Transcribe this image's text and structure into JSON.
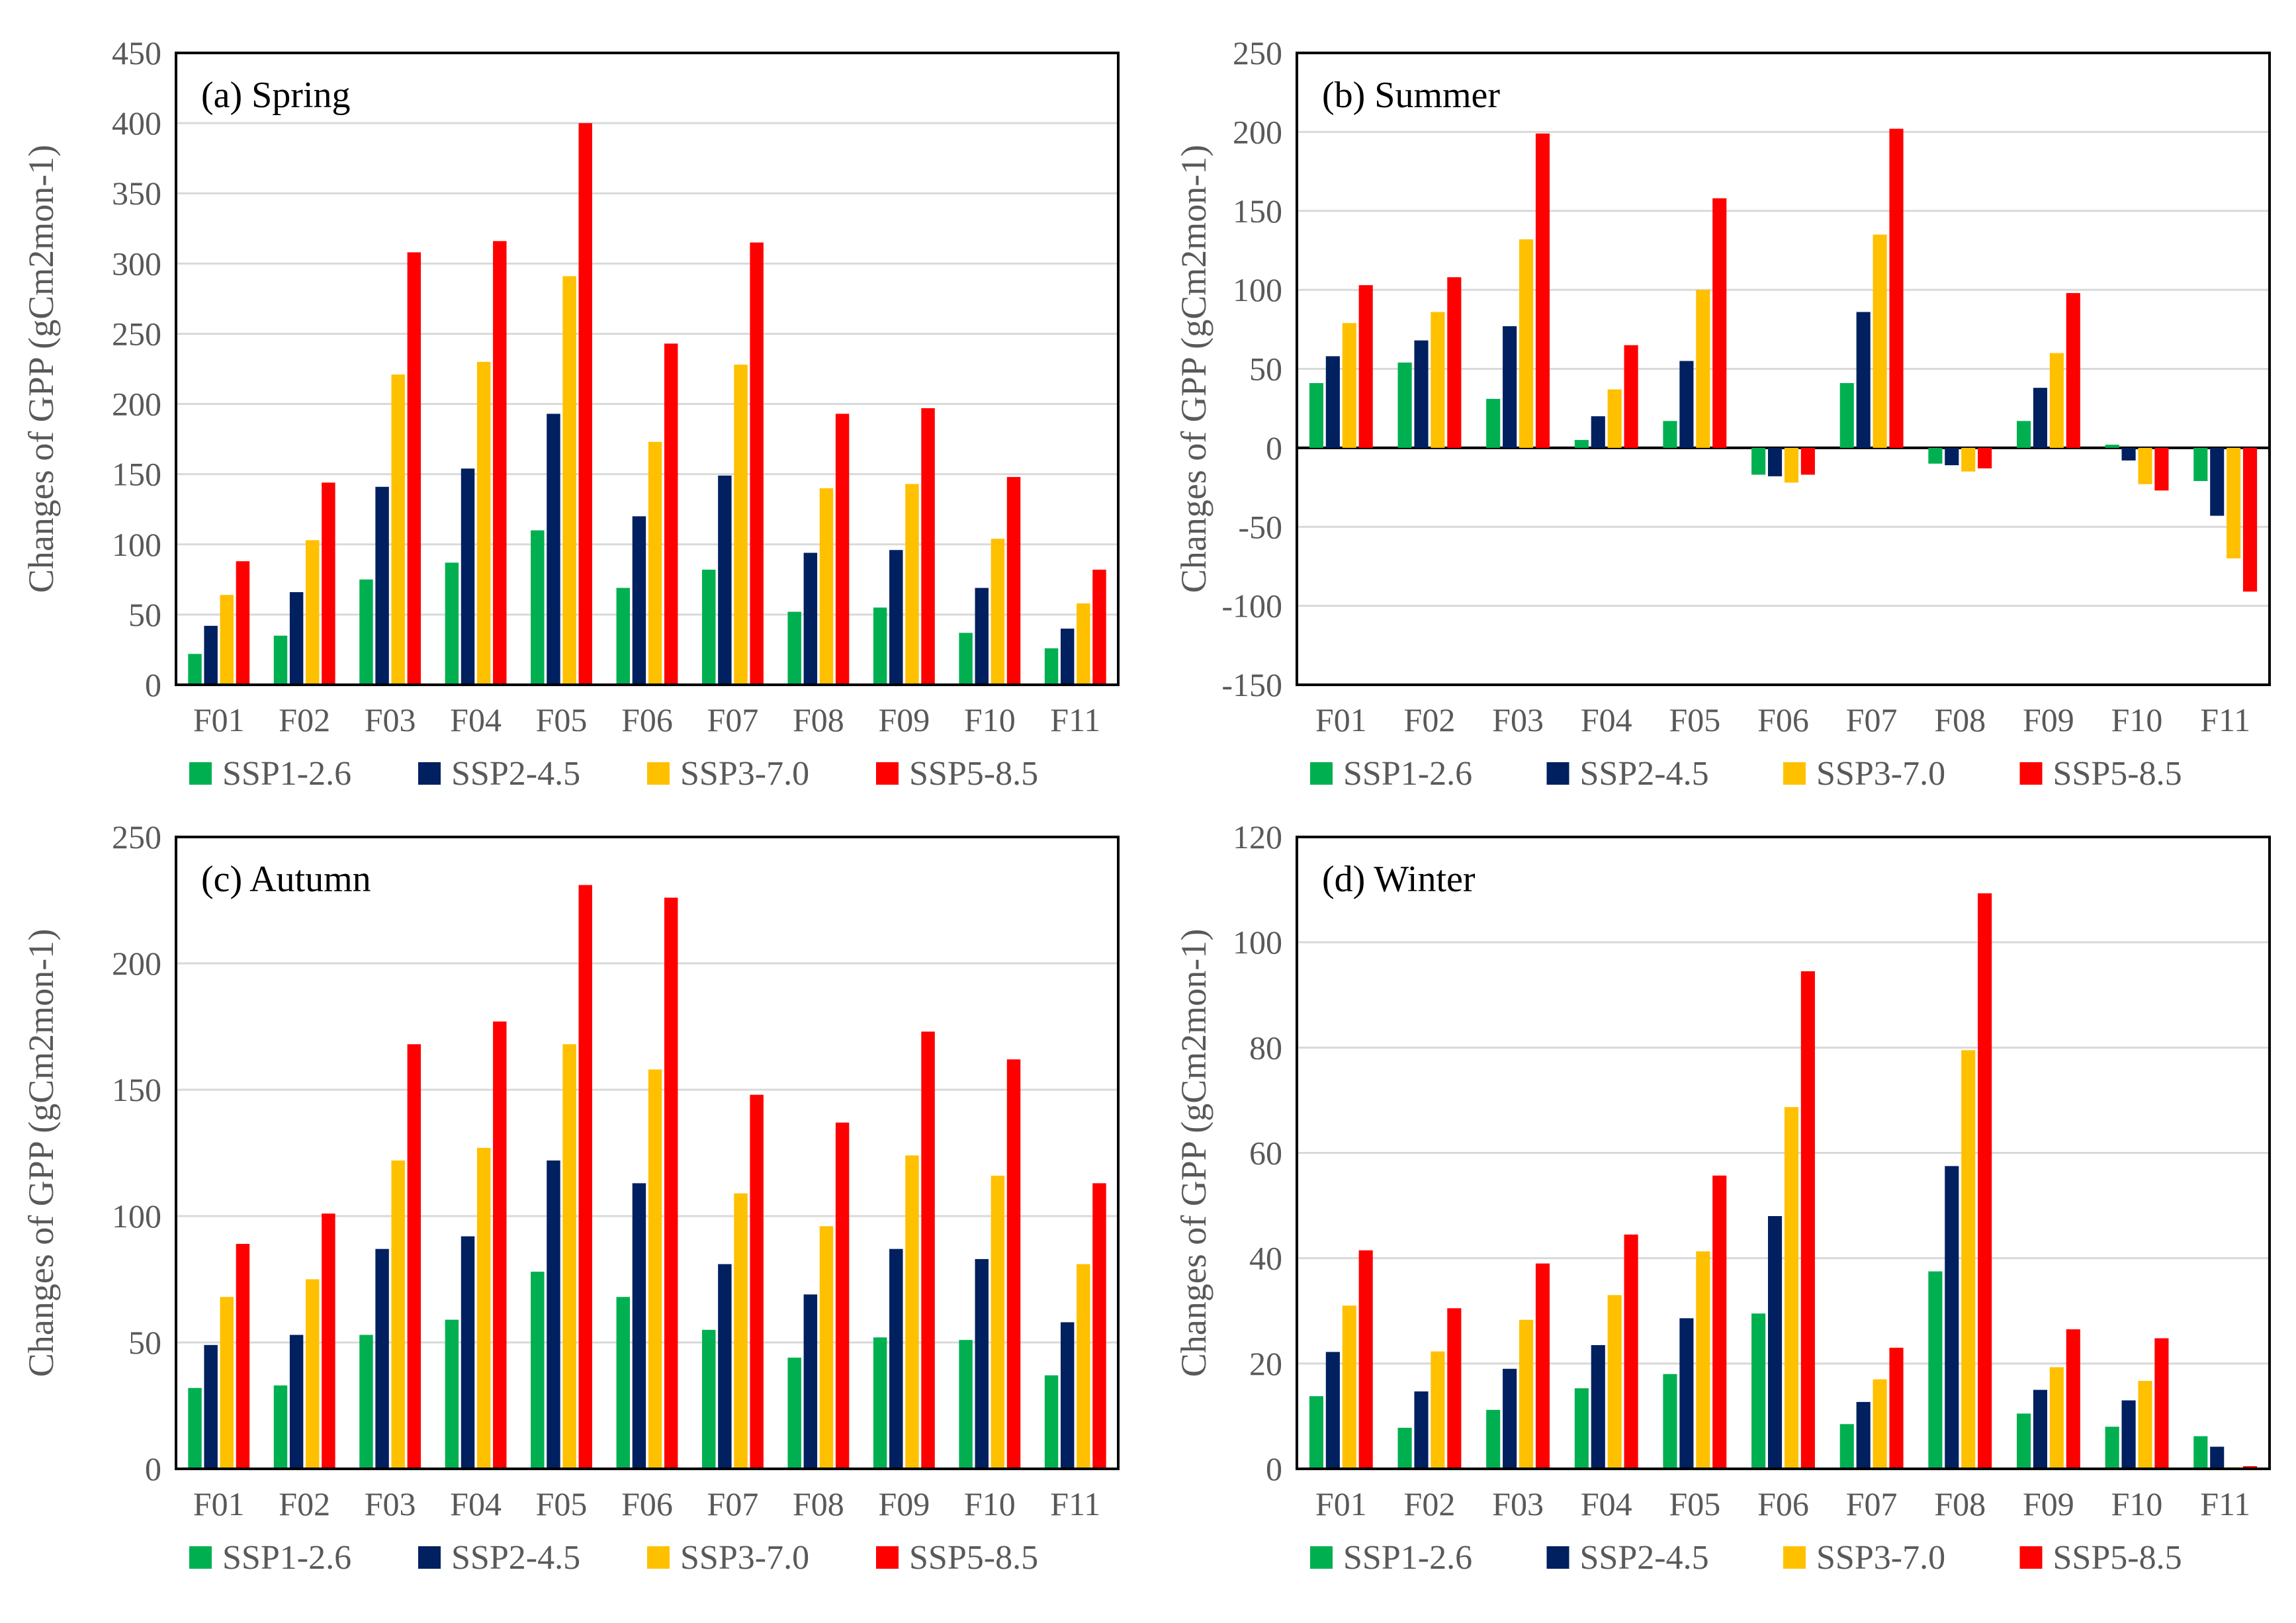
{
  "colors": {
    "SSP1-2.6": "#00b050",
    "SSP2-4.5": "#002060",
    "SSP3-7.0": "#ffc000",
    "SSP5-8.5": "#ff0000",
    "gridline": "#d9d9d9",
    "frame": "#000000"
  },
  "chart_data": [
    {
      "type": "bar",
      "title": "(a) Spring",
      "ylabel": "Changes of GPP (gCm2mon-1)",
      "ylim": [
        0,
        450
      ],
      "yticks": [
        0,
        50,
        100,
        150,
        200,
        250,
        300,
        350,
        400,
        450
      ],
      "categories": [
        "F01",
        "F02",
        "F03",
        "F04",
        "F05",
        "F06",
        "F07",
        "F08",
        "F09",
        "F10",
        "F11"
      ],
      "series": [
        {
          "name": "SSP1-2.6",
          "values": [
            22,
            35,
            75,
            87,
            110,
            69,
            82,
            52,
            55,
            37,
            26
          ]
        },
        {
          "name": "SSP2-4.5",
          "values": [
            42,
            66,
            141,
            154,
            193,
            120,
            149,
            94,
            96,
            69,
            40
          ]
        },
        {
          "name": "SSP3-7.0",
          "values": [
            64,
            103,
            221,
            230,
            291,
            173,
            228,
            140,
            143,
            104,
            58
          ]
        },
        {
          "name": "SSP5-8.5",
          "values": [
            88,
            144,
            308,
            316,
            400,
            243,
            315,
            193,
            197,
            148,
            82
          ]
        }
      ],
      "legend": [
        "SSP1-2.6",
        "SSP2-4.5",
        "SSP3-7.0",
        "SSP5-8.5"
      ],
      "legend_position": "bottom",
      "grid": true
    },
    {
      "type": "bar",
      "title": "(b) Summer",
      "ylabel": "Changes of GPP (gCm2mon-1)",
      "ylim": [
        -150,
        250
      ],
      "yticks": [
        -150,
        -100,
        -50,
        0,
        50,
        100,
        150,
        200,
        250
      ],
      "categories": [
        "F01",
        "F02",
        "F03",
        "F04",
        "F05",
        "F06",
        "F07",
        "F08",
        "F09",
        "F10",
        "F11"
      ],
      "series": [
        {
          "name": "SSP1-2.6",
          "values": [
            41,
            54,
            31,
            5,
            17,
            -17,
            41,
            -10,
            17,
            2,
            -21
          ]
        },
        {
          "name": "SSP2-4.5",
          "values": [
            58,
            68,
            77,
            20,
            55,
            -18,
            86,
            -11,
            38,
            -8,
            -43
          ]
        },
        {
          "name": "SSP3-7.0",
          "values": [
            79,
            86,
            132,
            37,
            100,
            -22,
            135,
            -15,
            60,
            -23,
            -70
          ]
        },
        {
          "name": "SSP5-8.5",
          "values": [
            103,
            108,
            199,
            65,
            158,
            -17,
            202,
            -13,
            98,
            -27,
            -91
          ]
        }
      ],
      "legend": [
        "SSP1-2.6",
        "SSP2-4.5",
        "SSP3-7.0",
        "SSP5-8.5"
      ],
      "legend_position": "bottom",
      "grid": true
    },
    {
      "type": "bar",
      "title": "(c) Autumn",
      "ylabel": "Changes of GPP (gCm2mon-1)",
      "ylim": [
        0,
        250
      ],
      "yticks": [
        0,
        50,
        100,
        150,
        200,
        250
      ],
      "categories": [
        "F01",
        "F02",
        "F03",
        "F04",
        "F05",
        "F06",
        "F07",
        "F08",
        "F09",
        "F10",
        "F11"
      ],
      "series": [
        {
          "name": "SSP1-2.6",
          "values": [
            32,
            33,
            53,
            59,
            78,
            68,
            55,
            44,
            52,
            51,
            37
          ]
        },
        {
          "name": "SSP2-4.5",
          "values": [
            49,
            53,
            87,
            92,
            122,
            113,
            81,
            69,
            87,
            83,
            58
          ]
        },
        {
          "name": "SSP3-7.0",
          "values": [
            68,
            75,
            122,
            127,
            168,
            158,
            109,
            96,
            124,
            116,
            81
          ]
        },
        {
          "name": "SSP5-8.5",
          "values": [
            89,
            101,
            168,
            177,
            231,
            226,
            148,
            137,
            173,
            162,
            113
          ]
        }
      ],
      "legend": [
        "SSP1-2.6",
        "SSP2-4.5",
        "SSP3-7.0",
        "SSP5-8.5"
      ],
      "legend_position": "bottom",
      "grid": true
    },
    {
      "type": "bar",
      "title": "(d) Winter",
      "ylabel": "Changes of GPP (gCm2mon-1)",
      "ylim": [
        0,
        120
      ],
      "yticks": [
        0,
        20,
        40,
        60,
        80,
        100,
        120
      ],
      "categories": [
        "F01",
        "F02",
        "F03",
        "F04",
        "F05",
        "F06",
        "F07",
        "F08",
        "F09",
        "F10",
        "F11"
      ],
      "series": [
        {
          "name": "SSP1-2.6",
          "values": [
            13.8,
            7.8,
            11.2,
            15.3,
            18,
            29.5,
            8.5,
            37.5,
            10.5,
            8,
            6.2
          ]
        },
        {
          "name": "SSP2-4.5",
          "values": [
            22.2,
            14.7,
            19,
            23.5,
            28.6,
            48,
            12.7,
            57.5,
            15,
            13,
            4.2
          ]
        },
        {
          "name": "SSP3-7.0",
          "values": [
            31,
            22.3,
            28.3,
            33,
            41.3,
            68.7,
            17,
            79.5,
            19.3,
            16.7,
            0.3
          ]
        },
        {
          "name": "SSP5-8.5",
          "values": [
            41.5,
            30.5,
            39,
            44.5,
            55.7,
            94.5,
            23,
            109.3,
            26.5,
            24.8,
            0.5
          ]
        }
      ],
      "legend": [
        "SSP1-2.6",
        "SSP2-4.5",
        "SSP3-7.0",
        "SSP5-8.5"
      ],
      "legend_position": "bottom",
      "grid": true
    }
  ]
}
